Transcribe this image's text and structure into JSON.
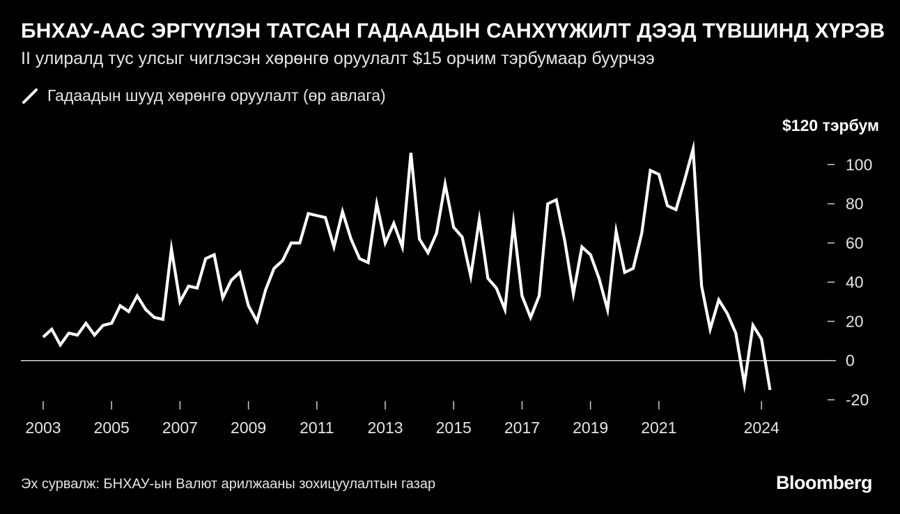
{
  "header": {
    "title": "БНХАУ-ААС ЭРГҮҮЛЭН ТАТСАН ГАДААДЫН САНХҮҮЖИЛТ ДЭЭД ТҮВШИНД ХҮРЭВ",
    "subtitle": "II улиралд тус улсыг чиглэсэн хөрөнгө оруулалт $15 орчим тэрбумаар буурчээ"
  },
  "footer": {
    "source": "Эх сурвалж: БНХАУ-ын Валют арилжааны зохицуулалтын газар",
    "brand": "Bloomberg"
  },
  "chart_data": {
    "type": "line",
    "legend": [
      "Гадаадын шууд хөрөнгө оруулалт (өр авлага)"
    ],
    "legend_position": "top-left",
    "ylim": [
      -20,
      120
    ],
    "yticks": [
      {
        "value": 120,
        "label": "$120 тэрбум"
      },
      {
        "value": 100,
        "label": "100"
      },
      {
        "value": 80,
        "label": "80"
      },
      {
        "value": 60,
        "label": "60"
      },
      {
        "value": 40,
        "label": "40"
      },
      {
        "value": 20,
        "label": "20"
      },
      {
        "value": 0,
        "label": "0"
      },
      {
        "value": -20,
        "label": "-20"
      }
    ],
    "xlim": [
      2003,
      2024.75
    ],
    "xticks": [
      2003,
      2005,
      2007,
      2009,
      2011,
      2013,
      2015,
      2017,
      2019,
      2021,
      2024
    ],
    "xtick_labels": [
      "2003",
      "2005",
      "2007",
      "2009",
      "2011",
      "2013",
      "2015",
      "2017",
      "2019",
      "2021",
      "2024"
    ],
    "grid": false,
    "zero_line": true,
    "color": "#ffffff",
    "series": [
      {
        "x": [
          2003.0,
          2003.25,
          2003.5,
          2003.75,
          2004.0,
          2004.25,
          2004.5,
          2004.75,
          2005.0,
          2005.25,
          2005.5,
          2005.75,
          2006.0,
          2006.25,
          2006.5,
          2006.75,
          2007.0,
          2007.25,
          2007.5,
          2007.75,
          2008.0,
          2008.25,
          2008.5,
          2008.75,
          2009.0,
          2009.25,
          2009.5,
          2009.75,
          2010.0,
          2010.25,
          2010.5,
          2010.75,
          2011.0,
          2011.25,
          2011.5,
          2011.75,
          2012.0,
          2012.25,
          2012.5,
          2012.75,
          2013.0,
          2013.25,
          2013.5,
          2013.75,
          2014.0,
          2014.25,
          2014.5,
          2014.75,
          2015.0,
          2015.25,
          2015.5,
          2015.75,
          2016.0,
          2016.25,
          2016.5,
          2016.75,
          2017.0,
          2017.25,
          2017.5,
          2017.75,
          2018.0,
          2018.25,
          2018.5,
          2018.75,
          2019.0,
          2019.25,
          2019.5,
          2019.75,
          2020.0,
          2020.25,
          2020.5,
          2020.75,
          2021.0,
          2021.25,
          2021.5,
          2021.75,
          2022.0,
          2022.25,
          2022.5,
          2022.75,
          2023.0,
          2023.25,
          2023.5,
          2023.75,
          2024.0,
          2024.25
        ],
        "values": [
          12,
          16,
          8,
          14,
          13,
          19,
          13,
          18,
          19,
          28,
          25,
          33,
          26,
          22,
          21,
          57,
          30,
          38,
          37,
          52,
          54,
          32,
          41,
          45,
          28,
          20,
          36,
          47,
          51,
          60,
          60,
          75,
          74,
          73,
          58,
          76,
          62,
          52,
          50,
          80,
          60,
          70,
          58,
          106,
          62,
          55,
          65,
          90,
          68,
          63,
          43,
          72,
          42,
          37,
          26,
          70,
          33,
          22,
          33,
          80,
          82,
          61,
          34,
          58,
          54,
          42,
          26,
          66,
          45,
          47,
          65,
          97,
          95,
          79,
          77,
          92,
          108,
          38,
          16,
          31,
          24,
          14,
          -12,
          18,
          11,
          -15
        ]
      }
    ]
  }
}
